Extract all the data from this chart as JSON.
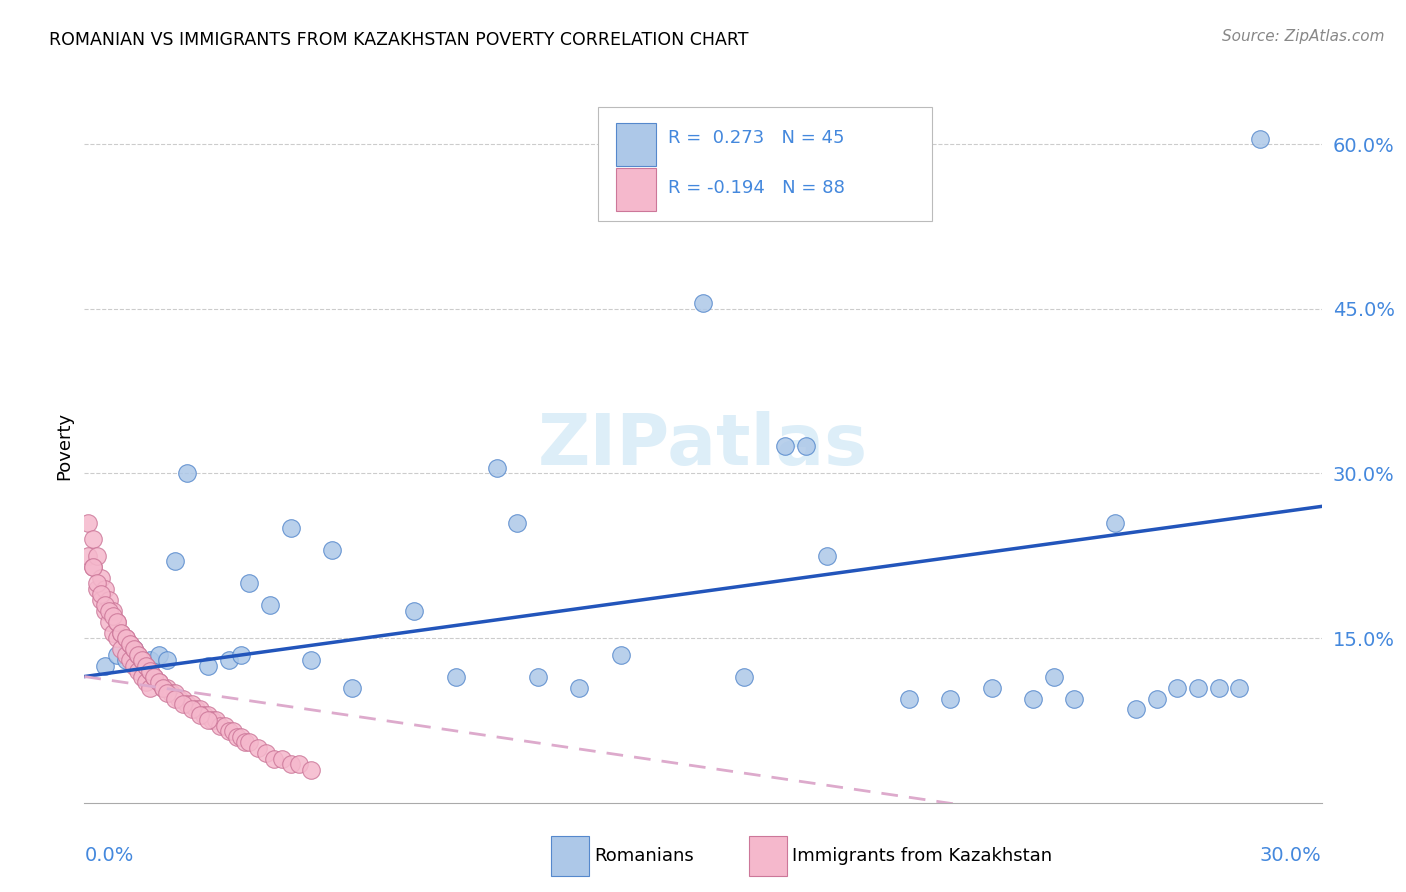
{
  "title": "ROMANIAN VS IMMIGRANTS FROM KAZAKHSTAN POVERTY CORRELATION CHART",
  "source": "Source: ZipAtlas.com",
  "ylabel": "Poverty",
  "xlim": [
    0.0,
    0.3
  ],
  "ylim": [
    0.0,
    0.65
  ],
  "ytick_vals": [
    0.15,
    0.3,
    0.45,
    0.6
  ],
  "ytick_labels": [
    "15.0%",
    "30.0%",
    "45.0%",
    "60.0%"
  ],
  "color_romanians": "#adc8e8",
  "color_kazakhs": "#f5b8cc",
  "edge_romanians": "#5588cc",
  "edge_kazakhs": "#cc7799",
  "line_blue": "#2255bb",
  "line_pink": "#ddaacc",
  "background_color": "#ffffff",
  "grid_color": "#cccccc",
  "watermark_color": "#ddeef8",
  "rom_x": [
    0.005,
    0.008,
    0.01,
    0.012,
    0.014,
    0.016,
    0.018,
    0.02,
    0.022,
    0.025,
    0.03,
    0.035,
    0.038,
    0.04,
    0.045,
    0.05,
    0.055,
    0.06,
    0.065,
    0.08,
    0.09,
    0.1,
    0.105,
    0.11,
    0.12,
    0.13,
    0.15,
    0.16,
    0.17,
    0.175,
    0.18,
    0.2,
    0.21,
    0.22,
    0.23,
    0.235,
    0.24,
    0.25,
    0.255,
    0.26,
    0.265,
    0.27,
    0.275,
    0.28,
    0.285
  ],
  "rom_y": [
    0.125,
    0.135,
    0.13,
    0.14,
    0.125,
    0.13,
    0.135,
    0.13,
    0.22,
    0.3,
    0.125,
    0.13,
    0.135,
    0.2,
    0.18,
    0.25,
    0.13,
    0.23,
    0.105,
    0.175,
    0.115,
    0.305,
    0.255,
    0.115,
    0.105,
    0.135,
    0.455,
    0.115,
    0.325,
    0.325,
    0.225,
    0.095,
    0.095,
    0.105,
    0.095,
    0.115,
    0.095,
    0.255,
    0.085,
    0.095,
    0.105,
    0.105,
    0.105,
    0.105,
    0.605
  ],
  "kaz_x": [
    0.001,
    0.001,
    0.002,
    0.002,
    0.003,
    0.003,
    0.004,
    0.004,
    0.005,
    0.005,
    0.006,
    0.006,
    0.007,
    0.007,
    0.008,
    0.008,
    0.009,
    0.009,
    0.01,
    0.01,
    0.011,
    0.011,
    0.012,
    0.012,
    0.013,
    0.013,
    0.014,
    0.014,
    0.015,
    0.015,
    0.016,
    0.016,
    0.017,
    0.018,
    0.019,
    0.02,
    0.021,
    0.022,
    0.023,
    0.024,
    0.025,
    0.026,
    0.027,
    0.028,
    0.029,
    0.03,
    0.031,
    0.032,
    0.033,
    0.034,
    0.035,
    0.036,
    0.037,
    0.038,
    0.039,
    0.04,
    0.042,
    0.044,
    0.046,
    0.048,
    0.05,
    0.052,
    0.055,
    0.002,
    0.003,
    0.004,
    0.005,
    0.006,
    0.007,
    0.008,
    0.009,
    0.01,
    0.011,
    0.012,
    0.013,
    0.014,
    0.015,
    0.016,
    0.017,
    0.018,
    0.019,
    0.02,
    0.022,
    0.024,
    0.026,
    0.028,
    0.03
  ],
  "kaz_y": [
    0.255,
    0.225,
    0.24,
    0.215,
    0.225,
    0.195,
    0.205,
    0.185,
    0.195,
    0.175,
    0.185,
    0.165,
    0.175,
    0.155,
    0.165,
    0.15,
    0.155,
    0.14,
    0.15,
    0.135,
    0.145,
    0.13,
    0.14,
    0.125,
    0.135,
    0.12,
    0.13,
    0.115,
    0.125,
    0.11,
    0.12,
    0.105,
    0.115,
    0.11,
    0.105,
    0.105,
    0.1,
    0.1,
    0.095,
    0.095,
    0.09,
    0.09,
    0.085,
    0.085,
    0.08,
    0.08,
    0.075,
    0.075,
    0.07,
    0.07,
    0.065,
    0.065,
    0.06,
    0.06,
    0.055,
    0.055,
    0.05,
    0.045,
    0.04,
    0.04,
    0.035,
    0.035,
    0.03,
    0.215,
    0.2,
    0.19,
    0.18,
    0.175,
    0.17,
    0.165,
    0.155,
    0.15,
    0.145,
    0.14,
    0.135,
    0.13,
    0.125,
    0.12,
    0.115,
    0.11,
    0.105,
    0.1,
    0.095,
    0.09,
    0.085,
    0.08,
    0.075
  ]
}
